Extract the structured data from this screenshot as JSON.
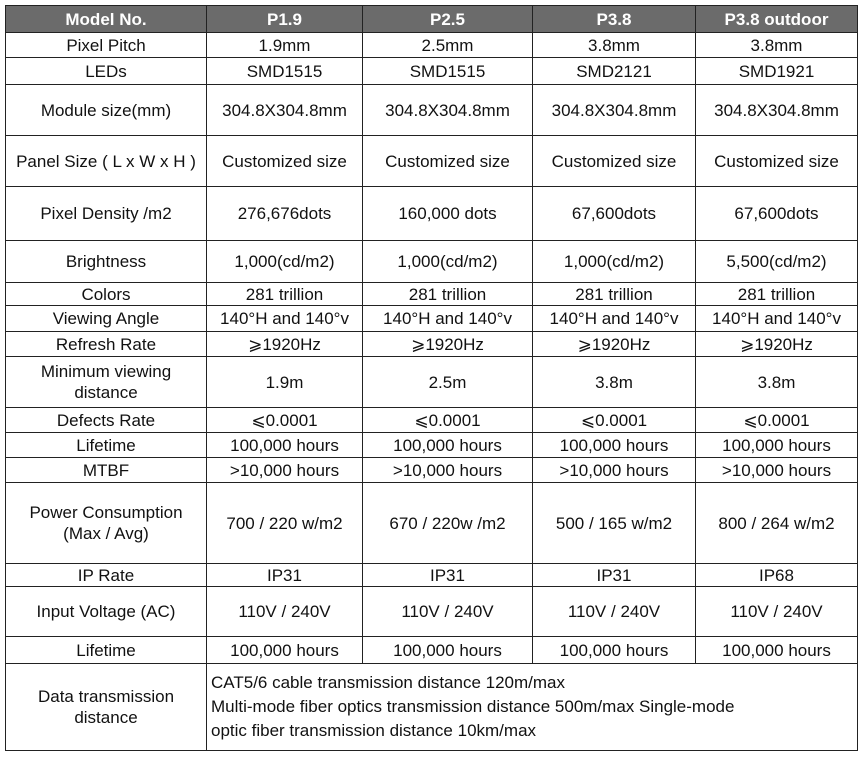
{
  "header": [
    "Model No.",
    "P1.9",
    "P2.5",
    "P3.8",
    "P3.8 outdoor"
  ],
  "rows": [
    {
      "label": "Pixel Pitch",
      "cells": [
        "1.9mm",
        "2.5mm",
        "3.8mm",
        "3.8mm"
      ]
    },
    {
      "label": "LEDs",
      "cells": [
        "SMD1515",
        "SMD1515",
        "SMD2121",
        "SMD1921"
      ]
    },
    {
      "label": "Module size(mm)",
      "cells": [
        "304.8X304.8mm",
        "304.8X304.8mm",
        "304.8X304.8mm",
        "304.8X304.8mm"
      ]
    },
    {
      "label": "Panel Size ( L x W x H )",
      "cells": [
        "Customized size",
        "Customized size",
        "Customized size",
        "Customized size"
      ]
    },
    {
      "label": "Pixel Density /m2",
      "cells": [
        "276,676dots",
        "160,000 dots",
        "67,600dots",
        "67,600dots"
      ]
    },
    {
      "label": "Brightness",
      "cells": [
        "1,000(cd/m2)",
        "1,000(cd/m2)",
        "1,000(cd/m2)",
        "5,500(cd/m2)"
      ]
    },
    {
      "label": "Colors",
      "cells": [
        "281 trillion",
        "281 trillion",
        "281 trillion",
        "281 trillion"
      ]
    },
    {
      "label": "Viewing Angle",
      "cells": [
        "140°H and 140°v",
        "140°H and 140°v",
        "140°H and 140°v",
        "140°H and 140°v"
      ]
    },
    {
      "label": "Refresh Rate",
      "cells": [
        "⩾1920Hz",
        "⩾1920Hz",
        "⩾1920Hz",
        "⩾1920Hz"
      ]
    },
    {
      "label": "Minimum viewing distance",
      "cells": [
        "1.9m",
        "2.5m",
        "3.8m",
        "3.8m"
      ]
    },
    {
      "label": "Defects Rate",
      "cells": [
        "⩽0.0001",
        "⩽0.0001",
        "⩽0.0001",
        "⩽0.0001"
      ]
    },
    {
      "label": "Lifetime",
      "cells": [
        "100,000 hours",
        "100,000 hours",
        "100,000 hours",
        "100,000 hours"
      ]
    },
    {
      "label": "MTBF",
      "cells": [
        ">10,000 hours",
        ">10,000 hours",
        ">10,000 hours",
        ">10,000 hours"
      ]
    },
    {
      "label": "Power Consumption (Max / Avg)",
      "cells": [
        "700 / 220 w/m2",
        "670 / 220w /m2",
        "500 / 165 w/m2",
        "800 / 264 w/m2"
      ]
    },
    {
      "label": "IP Rate",
      "cells": [
        "IP31",
        "IP31",
        "IP31",
        "IP68"
      ]
    },
    {
      "label": "Input Voltage (AC)",
      "cells": [
        "110V / 240V",
        "110V / 240V",
        "110V / 240V",
        "110V / 240V"
      ]
    },
    {
      "label": "Lifetime",
      "cells": [
        "100,000 hours",
        "100,000 hours",
        "100,000 hours",
        "100,000 hours"
      ]
    }
  ],
  "transmission": {
    "label": "Data transmission distance",
    "lines": [
      "CAT5/6 cable transmission distance 120m/max",
      "Multi-mode fiber optics transmission distance 500m/max Single-mode",
      "optic fiber transmission distance 10km/max"
    ]
  }
}
